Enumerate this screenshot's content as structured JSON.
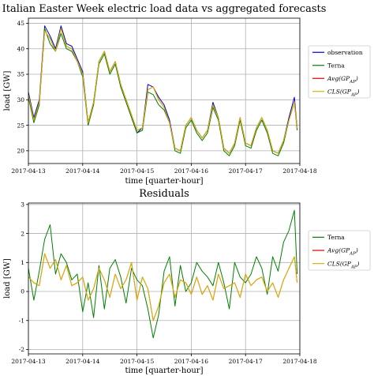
{
  "chart_data": [
    {
      "type": "line",
      "title": "Italian Easter Week electric load data vs aggregated forecasts",
      "xlabel": "time [quarter-hour]",
      "ylabel": "load [GW]",
      "x_ticks": [
        "2017-04-13",
        "2017-04-14",
        "2017-04-15",
        "2017-04-16",
        "2017-04-17",
        "2017-04-18"
      ],
      "xlim": [
        0,
        5
      ],
      "ylim": [
        17.5,
        46
      ],
      "y_ticks": [
        20,
        25,
        30,
        35,
        40,
        45
      ],
      "grid": true,
      "legend": "right",
      "x": [
        0,
        0.1,
        0.2,
        0.3,
        0.4,
        0.5,
        0.6,
        0.7,
        0.8,
        0.9,
        1.0,
        1.1,
        1.2,
        1.3,
        1.4,
        1.5,
        1.6,
        1.7,
        1.8,
        1.9,
        2.0,
        2.1,
        2.2,
        2.3,
        2.4,
        2.5,
        2.6,
        2.7,
        2.8,
        2.9,
        3.0,
        3.1,
        3.2,
        3.3,
        3.4,
        3.5,
        3.6,
        3.7,
        3.8,
        3.9,
        4.0,
        4.1,
        4.2,
        4.3,
        4.4,
        4.5,
        4.6,
        4.7,
        4.8,
        4.9,
        4.95
      ],
      "series": [
        {
          "name": "observation",
          "color": "#0000cc",
          "values": [
            31.5,
            26.5,
            30,
            44.5,
            42.5,
            40,
            44.5,
            41,
            40.5,
            38,
            35.5,
            25.5,
            29.5,
            37.5,
            39.5,
            35.5,
            37.5,
            33,
            30,
            27,
            23.5,
            24.5,
            33,
            32.5,
            30.5,
            29,
            26,
            20.5,
            20,
            25,
            26.5,
            24,
            22.5,
            24,
            29.5,
            26.5,
            20.5,
            19.5,
            21.5,
            26.5,
            21.5,
            21,
            24.5,
            26.5,
            24,
            20,
            19.5,
            22,
            26.5,
            30.5,
            24.5
          ]
        },
        {
          "name": "Terna",
          "color": "#008000",
          "values": [
            30.5,
            25.5,
            29,
            44,
            41,
            39.5,
            43,
            40,
            39.5,
            37.5,
            34.5,
            25,
            29,
            37,
            39,
            35,
            37,
            32.5,
            29.5,
            26.5,
            23.5,
            24,
            31.5,
            31,
            29,
            28,
            25.5,
            20,
            19.5,
            24.5,
            26,
            23.5,
            22,
            23.5,
            28.5,
            26,
            20,
            19,
            21,
            26,
            21,
            20.5,
            24,
            26,
            23.5,
            19.5,
            19,
            21.5,
            26,
            29.5,
            24
          ]
        },
        {
          "name": "Avg(GP_AP)",
          "color": "#dd0000",
          "values": [
            31,
            26,
            29.5,
            43.5,
            42,
            39.5,
            44,
            40.5,
            40,
            37.5,
            35,
            25.5,
            29.5,
            37.5,
            39.5,
            35.5,
            37.5,
            33,
            30,
            27,
            24,
            24.5,
            32,
            32.5,
            30,
            28.5,
            25.5,
            20.5,
            20,
            25,
            26.5,
            24,
            22.5,
            24,
            29,
            26.5,
            20.5,
            19.5,
            21.5,
            26.5,
            21.5,
            21,
            24.5,
            26.5,
            24,
            20,
            19.5,
            22,
            26,
            29.5,
            24.5
          ]
        },
        {
          "name": "CLS(GP_AP)",
          "color": "#d4b800",
          "values": [
            31,
            26,
            29.5,
            43.5,
            42,
            39.5,
            44,
            40.5,
            40,
            37.5,
            35,
            25.5,
            29.5,
            37.5,
            39.5,
            35.5,
            37.5,
            33,
            30,
            27,
            24,
            24.5,
            32,
            32.5,
            30,
            28.5,
            25.5,
            20.5,
            20,
            25,
            26.5,
            24,
            22.5,
            24,
            29,
            26.5,
            20.5,
            19.5,
            21.5,
            26.5,
            21.5,
            21,
            24.5,
            26.5,
            24,
            20,
            19.5,
            22,
            26,
            29.5,
            24.5
          ]
        }
      ]
    },
    {
      "type": "line",
      "title": "Residuals",
      "xlabel": "time [quarter-hour]",
      "ylabel": "load [GW]",
      "x_ticks": [
        "2017-04-13",
        "2017-04-14",
        "2017-04-15",
        "2017-04-16",
        "2017-04-17",
        "2017-04-18"
      ],
      "xlim": [
        0,
        5
      ],
      "ylim": [
        -2.15,
        3.05
      ],
      "y_ticks": [
        -2,
        -1,
        0,
        1,
        2,
        3
      ],
      "grid": true,
      "legend": "right",
      "x": [
        0,
        0.1,
        0.2,
        0.3,
        0.4,
        0.5,
        0.6,
        0.7,
        0.8,
        0.9,
        1.0,
        1.1,
        1.2,
        1.3,
        1.4,
        1.5,
        1.6,
        1.7,
        1.8,
        1.9,
        2.0,
        2.1,
        2.2,
        2.3,
        2.4,
        2.5,
        2.6,
        2.7,
        2.8,
        2.9,
        3.0,
        3.1,
        3.2,
        3.3,
        3.4,
        3.5,
        3.6,
        3.7,
        3.8,
        3.9,
        4.0,
        4.1,
        4.2,
        4.3,
        4.4,
        4.5,
        4.6,
        4.7,
        4.8,
        4.9,
        4.95
      ],
      "series": [
        {
          "name": "Terna",
          "color": "#008000",
          "values": [
            0.8,
            -0.3,
            0.7,
            1.8,
            2.3,
            0.6,
            1.3,
            1.0,
            0.4,
            0.6,
            -0.7,
            0.3,
            -0.9,
            0.9,
            -0.6,
            0.8,
            1.1,
            0.5,
            -0.4,
            0.8,
            0.4,
            0.2,
            -0.6,
            -1.6,
            -0.8,
            0.7,
            1.2,
            -0.5,
            0.9,
            0.0,
            0.3,
            1.0,
            0.7,
            0.5,
            0.2,
            1.0,
            0.3,
            -0.6,
            1.0,
            0.5,
            0.3,
            0.6,
            1.2,
            0.8,
            -0.1,
            1.2,
            0.7,
            1.7,
            2.1,
            2.8,
            0.6
          ]
        },
        {
          "name": "Avg(GP_AP)",
          "color": "#dd0000",
          "values": [
            0.5,
            0.3,
            0.2,
            1.3,
            0.8,
            1.1,
            0.4,
            0.9,
            0.2,
            0.3,
            0.5,
            -0.3,
            0.1,
            0.8,
            0.4,
            -0.2,
            0.6,
            0.1,
            0.4,
            1.0,
            -0.3,
            0.5,
            0.1,
            -1.0,
            -0.5,
            0.3,
            0.6,
            -0.2,
            0.4,
            0.3,
            -0.1,
            0.5,
            -0.1,
            0.2,
            -0.3,
            0.6,
            0.1,
            0.2,
            0.3,
            -0.2,
            0.6,
            0.2,
            0.4,
            0.5,
            0.0,
            0.3,
            -0.2,
            0.4,
            0.8,
            1.2,
            0.3
          ]
        },
        {
          "name": "CLS(GP_AP)",
          "color": "#d4b800",
          "values": [
            0.5,
            0.3,
            0.2,
            1.3,
            0.8,
            1.1,
            0.4,
            0.9,
            0.2,
            0.3,
            0.5,
            -0.3,
            0.1,
            0.8,
            0.4,
            -0.2,
            0.6,
            0.1,
            0.4,
            1.0,
            -0.3,
            0.5,
            0.1,
            -1.0,
            -0.5,
            0.3,
            0.6,
            -0.2,
            0.4,
            0.3,
            -0.1,
            0.5,
            -0.1,
            0.2,
            -0.3,
            0.6,
            0.1,
            0.2,
            0.3,
            -0.2,
            0.6,
            0.2,
            0.4,
            0.5,
            0.0,
            0.3,
            -0.2,
            0.4,
            0.8,
            1.2,
            0.3
          ]
        }
      ]
    }
  ]
}
